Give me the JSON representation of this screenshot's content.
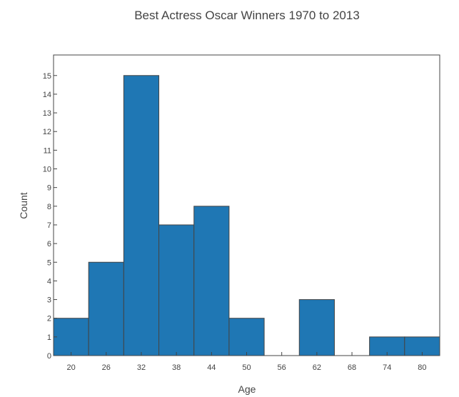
{
  "chart_data": {
    "type": "bar",
    "title": "Best Actress Oscar Winners 1970 to 2013",
    "xlabel": "Age",
    "ylabel": "Count",
    "bin_width": 6,
    "bin_start": 20,
    "categories": [
      "20",
      "26",
      "32",
      "38",
      "44",
      "50",
      "56",
      "62",
      "68",
      "74",
      "80"
    ],
    "values": [
      2,
      5,
      15,
      7,
      8,
      2,
      0,
      3,
      0,
      1,
      1
    ],
    "x_tick_labels": [
      "20",
      "26",
      "32",
      "38",
      "44",
      "50",
      "56",
      "62",
      "68",
      "74",
      "80"
    ],
    "y_ticks": [
      0,
      1,
      2,
      3,
      4,
      5,
      6,
      7,
      8,
      9,
      10,
      11,
      12,
      13,
      14,
      15
    ],
    "ylim": [
      0,
      16.1
    ],
    "grid": false,
    "colors": {
      "bar_fill": "#1f77b4",
      "bar_edge": "#444444",
      "text": "#444444"
    }
  }
}
